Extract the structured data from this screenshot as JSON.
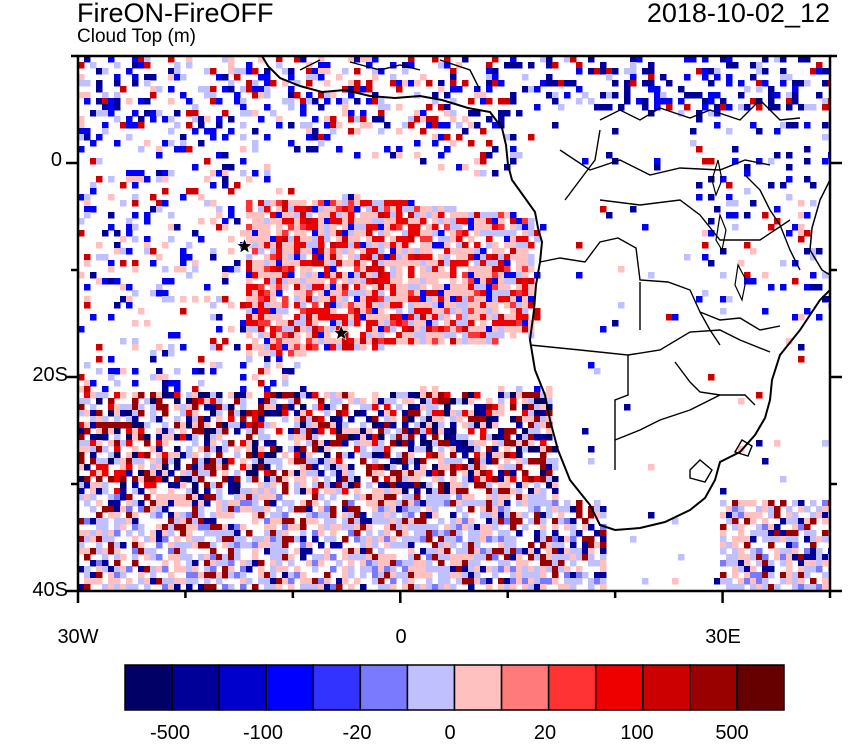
{
  "header": {
    "title": "FireON-FireOFF",
    "subtitle": "Cloud Top (m)",
    "datetime": "2018-10-02_12"
  },
  "axes": {
    "y_labels": [
      "0",
      "20S",
      "40S"
    ],
    "x_labels": [
      "30W",
      "0",
      "30E"
    ]
  },
  "colorbar": {
    "colors": [
      "#000066",
      "#000099",
      "#0000cc",
      "#0000ff",
      "#3333ff",
      "#7a7aff",
      "#c0c0ff",
      "#ffc0c0",
      "#ff7a7a",
      "#ff3333",
      "#ee0000",
      "#cc0000",
      "#990000",
      "#660000"
    ],
    "labels": [
      "-500",
      "-100",
      "-20",
      "0",
      "20",
      "100",
      "500"
    ]
  },
  "markers": [
    {
      "name": "star-marker-west",
      "lon": -14.5,
      "lat": -7.8
    },
    {
      "name": "star-marker-east",
      "lon": -5.5,
      "lat": -15.9
    }
  ]
}
